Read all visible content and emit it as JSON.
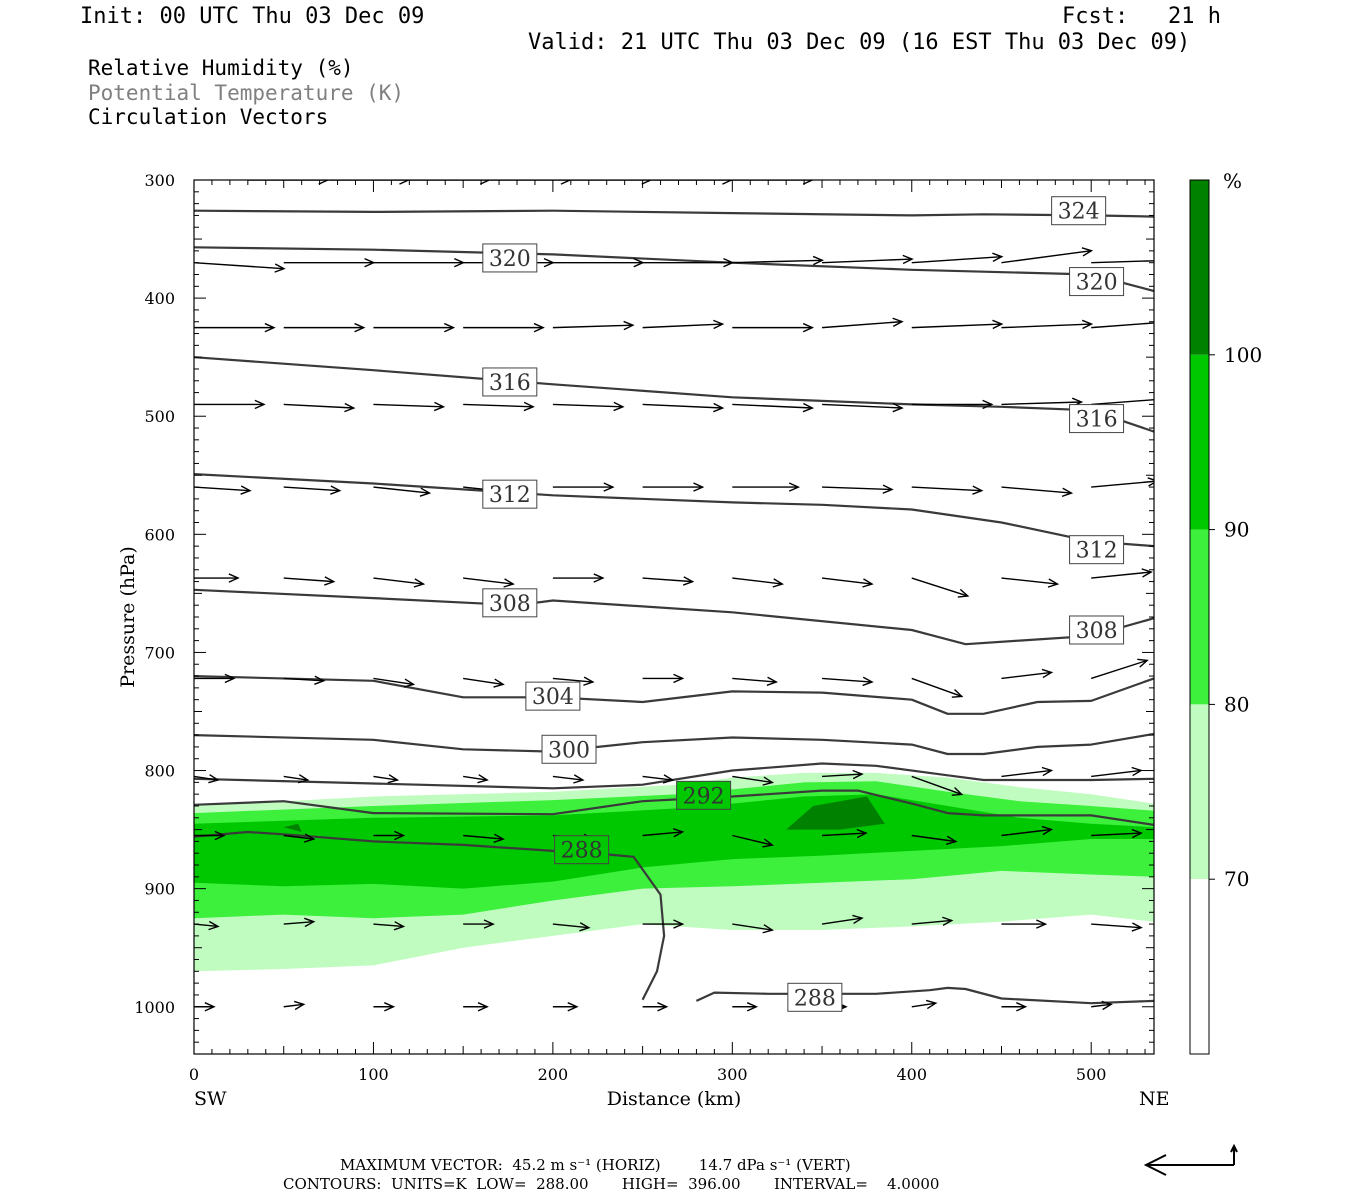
{
  "header": {
    "init": "Init: 00 UTC Thu 03 Dec 09",
    "fcst": "Fcst:   21 h",
    "valid": "Valid: 21 UTC Thu 03 Dec 09 (16 EST Thu 03 Dec 09)"
  },
  "legend": {
    "rh": "Relative Humidity (%)",
    "theta": "Potential Temperature (K)",
    "vectors": "Circulation Vectors"
  },
  "colors": {
    "rh70": "#c0fcc0",
    "rh80": "#3cf03c",
    "rh90": "#00c800",
    "rh100": "#008200",
    "contour": "#3a3a3a"
  },
  "chart_data": {
    "type": "cross-section",
    "xlabel": "Distance (km)",
    "ylabel": "Pressure (hPa)",
    "xlim": [
      0,
      535
    ],
    "ylim": [
      1040,
      300
    ],
    "x_ticks": [
      0,
      100,
      200,
      300,
      400,
      500
    ],
    "y_ticks": [
      300,
      400,
      500,
      600,
      700,
      800,
      900,
      1000
    ],
    "x_end_labels": {
      "left": "SW",
      "right": "NE"
    },
    "colorbar": {
      "unit": "%",
      "levels": [
        70,
        80,
        90,
        100
      ]
    },
    "theta_contours": [
      {
        "level": "324",
        "x": [
          0,
          100,
          200,
          300,
          400,
          440,
          500,
          535
        ],
        "p": [
          326,
          327,
          326,
          328,
          330,
          329,
          330,
          331
        ]
      },
      {
        "level": "320",
        "x": [
          0,
          100,
          200,
          300,
          400,
          500,
          535
        ],
        "p": [
          357,
          359,
          363,
          370,
          376,
          380,
          394
        ]
      },
      {
        "level": "316",
        "x": [
          0,
          100,
          200,
          300,
          350,
          400,
          450,
          500,
          535
        ],
        "p": [
          450,
          461,
          473,
          484,
          487,
          490,
          492,
          495,
          513
        ]
      },
      {
        "level": "312",
        "x": [
          0,
          100,
          200,
          300,
          350,
          400,
          450,
          500,
          535
        ],
        "p": [
          549,
          557,
          567,
          573,
          575,
          579,
          590,
          606,
          610
        ]
      },
      {
        "level": "308",
        "x": [
          0,
          100,
          180,
          200,
          300,
          400,
          430,
          460,
          500,
          535
        ],
        "p": [
          647,
          654,
          660,
          656,
          666,
          681,
          693,
          690,
          686,
          671
        ]
      },
      {
        "level": "304",
        "x": [
          0,
          100,
          150,
          200,
          250,
          300,
          350,
          400,
          420,
          440,
          470,
          500,
          535
        ],
        "p": [
          720,
          724,
          738,
          738,
          742,
          733,
          734,
          740,
          752,
          752,
          742,
          741,
          722
        ]
      },
      {
        "level": "300",
        "x": [
          0,
          100,
          150,
          200,
          250,
          300,
          350,
          400,
          420,
          440,
          470,
          500,
          535
        ],
        "p": [
          770,
          774,
          782,
          784,
          776,
          772,
          774,
          778,
          786,
          786,
          780,
          778,
          769
        ]
      },
      {
        "level": "296",
        "x": [
          0,
          100,
          200,
          250,
          300,
          350,
          380,
          420,
          440,
          500,
          535
        ],
        "p": [
          807,
          811,
          815,
          812,
          800,
          794,
          796,
          804,
          808,
          808,
          807
        ]
      },
      {
        "level": "292",
        "x": [
          0,
          50,
          100,
          200,
          250,
          300,
          350,
          370,
          400,
          420,
          440,
          500,
          535
        ],
        "p": [
          829,
          826,
          836,
          837,
          826,
          822,
          817,
          817,
          828,
          836,
          838,
          838,
          846
        ]
      },
      {
        "level": "288",
        "x": [
          0,
          30,
          50,
          100,
          150,
          200,
          230,
          245,
          260,
          262,
          258,
          250
        ],
        "p": [
          856,
          852,
          854,
          860,
          863,
          868,
          871,
          873,
          905,
          940,
          970,
          994
        ]
      },
      {
        "level": "288",
        "x": [
          280,
          290,
          320,
          350,
          380,
          410,
          420,
          430,
          450,
          500,
          535
        ],
        "p": [
          995,
          988,
          989,
          989,
          989,
          986,
          984,
          985,
          993,
          997,
          995
        ]
      }
    ],
    "contour_labels": [
      {
        "text": "324",
        "x": 493,
        "p": 326
      },
      {
        "text": "320",
        "x": 176,
        "p": 366
      },
      {
        "text": "320",
        "x": 503,
        "p": 386
      },
      {
        "text": "316",
        "x": 176,
        "p": 471
      },
      {
        "text": "316",
        "x": 503,
        "p": 502
      },
      {
        "text": "312",
        "x": 176,
        "p": 566
      },
      {
        "text": "312",
        "x": 503,
        "p": 613
      },
      {
        "text": "308",
        "x": 176,
        "p": 658
      },
      {
        "text": "308",
        "x": 503,
        "p": 681
      },
      {
        "text": "304",
        "x": 200,
        "p": 737
      },
      {
        "text": "300",
        "x": 209,
        "p": 782
      },
      {
        "text": "292",
        "x": 284,
        "p": 821
      },
      {
        "text": "288",
        "x": 216,
        "p": 867
      },
      {
        "text": "288",
        "x": 346,
        "p": 992
      }
    ],
    "rh_regions": [
      {
        "level": 70,
        "x": [
          0,
          100,
          200,
          270,
          300,
          340,
          380,
          420,
          460,
          500,
          535,
          535,
          500,
          450,
          400,
          350,
          300,
          250,
          200,
          150,
          100,
          50,
          0
        ],
        "p": [
          830,
          822,
          818,
          812,
          806,
          802,
          802,
          806,
          814,
          820,
          828,
          928,
          922,
          928,
          932,
          935,
          935,
          930,
          940,
          950,
          965,
          968,
          970
        ]
      },
      {
        "level": 80,
        "x": [
          0,
          100,
          200,
          270,
          300,
          340,
          380,
          420,
          460,
          500,
          535,
          535,
          500,
          450,
          400,
          350,
          300,
          250,
          200,
          150,
          100,
          50,
          0
        ],
        "p": [
          836,
          830,
          825,
          820,
          816,
          810,
          809,
          818,
          826,
          830,
          834,
          890,
          888,
          885,
          892,
          895,
          898,
          900,
          910,
          922,
          925,
          922,
          925
        ]
      },
      {
        "level": 90,
        "x": [
          0,
          100,
          200,
          270,
          300,
          340,
          380,
          420,
          460,
          500,
          535,
          535,
          500,
          450,
          400,
          350,
          300,
          250,
          200,
          150,
          100,
          50,
          0
        ],
        "p": [
          845,
          840,
          838,
          832,
          828,
          822,
          820,
          830,
          840,
          845,
          848,
          858,
          858,
          864,
          868,
          872,
          875,
          882,
          894,
          900,
          896,
          898,
          895
        ]
      },
      {
        "level": 100,
        "x": [
          330,
          345,
          375,
          385,
          360,
          330
        ],
        "p": [
          850,
          830,
          822,
          845,
          850,
          850
        ]
      },
      {
        "level": 100,
        "x": [
          50,
          58,
          60,
          50
        ],
        "p": [
          848,
          845,
          852,
          848
        ]
      }
    ],
    "vector_rows": [
      {
        "p": 300,
        "x": [
          30,
          75,
          120,
          165,
          210,
          255,
          300
        ],
        "u": [
          40,
          40,
          40,
          40,
          40,
          40,
          40
        ],
        "w": [
          0,
          0,
          0,
          0,
          0,
          0,
          0
        ]
      },
      {
        "p": 370,
        "x": [
          0,
          50,
          100,
          150,
          200,
          250,
          300,
          350,
          400,
          450,
          500
        ],
        "u": [
          45,
          45,
          45,
          45,
          45,
          45,
          45,
          45,
          45,
          45,
          40
        ],
        "w": [
          -0.5,
          0,
          0,
          0,
          0,
          0,
          0.2,
          0.3,
          0.5,
          1,
          0.2
        ]
      },
      {
        "p": 425,
        "x": [
          0,
          50,
          100,
          150,
          200,
          250,
          300,
          350,
          400,
          450,
          500
        ],
        "u": [
          40,
          40,
          40,
          40,
          40,
          40,
          40,
          40,
          45,
          45,
          40
        ],
        "w": [
          0,
          0,
          0,
          0,
          0.2,
          0.3,
          0,
          0.5,
          0.3,
          0.3,
          0.5
        ]
      },
      {
        "p": 490,
        "x": [
          0,
          50,
          100,
          150,
          200,
          250,
          300,
          350,
          400,
          450,
          500
        ],
        "u": [
          35,
          35,
          35,
          35,
          35,
          40,
          40,
          40,
          40,
          40,
          40
        ],
        "w": [
          0,
          -0.3,
          -0.2,
          -0.2,
          -0.2,
          -0.3,
          -0.3,
          -0.3,
          0,
          0.2,
          0.5
        ]
      },
      {
        "p": 560,
        "x": [
          0,
          50,
          100,
          150,
          200,
          250,
          300,
          350,
          400,
          450,
          500
        ],
        "u": [
          28,
          28,
          28,
          28,
          30,
          30,
          33,
          35,
          35,
          35,
          33
        ],
        "w": [
          -0.3,
          -0.3,
          -0.5,
          -0.5,
          0,
          0,
          0,
          -0.2,
          -0.3,
          -0.5,
          0.5
        ]
      },
      {
        "p": 637,
        "x": [
          0,
          50,
          100,
          150,
          200,
          250,
          300,
          350,
          400,
          450,
          500
        ],
        "u": [
          22,
          25,
          25,
          25,
          25,
          25,
          25,
          25,
          28,
          28,
          30
        ],
        "w": [
          0,
          -0.3,
          -0.5,
          -0.5,
          0,
          -0.3,
          -0.5,
          -0.5,
          -1.5,
          -0.5,
          0.5
        ]
      },
      {
        "p": 722,
        "x": [
          0,
          50,
          100,
          150,
          200,
          250,
          300,
          350,
          400,
          450,
          500
        ],
        "u": [
          20,
          20,
          20,
          20,
          20,
          20,
          22,
          25,
          25,
          25,
          28
        ],
        "w": [
          0,
          -0.2,
          -0.5,
          -0.5,
          -0.3,
          0,
          -0.3,
          -0.3,
          -1.5,
          0.5,
          1.5
        ]
      },
      {
        "p": 805,
        "x": [
          0,
          50,
          100,
          150,
          200,
          250,
          300,
          350,
          400,
          450,
          500
        ],
        "u": [
          12,
          12,
          12,
          12,
          15,
          15,
          20,
          20,
          25,
          25,
          25
        ],
        "w": [
          -0.3,
          -0.3,
          -0.3,
          -0.3,
          -0.3,
          -0.3,
          -0.5,
          0.2,
          -1.5,
          0.5,
          0.5
        ]
      },
      {
        "p": 855,
        "x": [
          0,
          50,
          100,
          150,
          200,
          250,
          300,
          350,
          400,
          450,
          500
        ],
        "u": [
          15,
          15,
          15,
          20,
          20,
          20,
          20,
          22,
          22,
          25,
          25
        ],
        "w": [
          0,
          -0.3,
          0,
          -0.3,
          -0.3,
          0.3,
          -0.8,
          0.2,
          -0.5,
          0.5,
          0.2
        ]
      },
      {
        "p": 930,
        "x": [
          0,
          50,
          100,
          150,
          200,
          250,
          300,
          350,
          400,
          450,
          500
        ],
        "u": [
          12,
          15,
          15,
          15,
          18,
          20,
          20,
          20,
          20,
          22,
          25
        ],
        "w": [
          -0.2,
          0.2,
          -0.2,
          0,
          -0.3,
          0,
          -0.5,
          0.5,
          0.3,
          0,
          -0.3
        ]
      },
      {
        "p": 1000,
        "x": [
          0,
          50,
          100,
          150,
          200,
          250,
          300,
          350,
          400,
          450,
          500
        ],
        "u": [
          10,
          10,
          10,
          12,
          12,
          12,
          12,
          12,
          12,
          12,
          10
        ],
        "w": [
          0,
          0.2,
          0,
          0,
          0,
          0,
          0,
          0,
          0.3,
          0,
          0.2
        ]
      }
    ],
    "reference_vector": {
      "horiz_ms": 45.2,
      "vert_dpa_s": 14.7
    }
  },
  "footer": {
    "max_vector": "MAXIMUM VECTOR:  45.2 m s⁻¹ (HORIZ)        14.7 dPa s⁻¹ (VERT)",
    "contours": "CONTOURS:  UNITS=K  LOW=  288.00       HIGH=  396.00       INTERVAL=    4.0000"
  }
}
